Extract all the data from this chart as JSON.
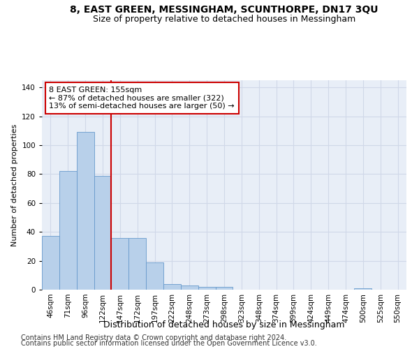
{
  "title": "8, EAST GREEN, MESSINGHAM, SCUNTHORPE, DN17 3QU",
  "subtitle": "Size of property relative to detached houses in Messingham",
  "xlabel": "Distribution of detached houses by size in Messingham",
  "ylabel": "Number of detached properties",
  "categories": [
    "46sqm",
    "71sqm",
    "96sqm",
    "122sqm",
    "147sqm",
    "172sqm",
    "197sqm",
    "222sqm",
    "248sqm",
    "273sqm",
    "298sqm",
    "323sqm",
    "348sqm",
    "374sqm",
    "399sqm",
    "424sqm",
    "449sqm",
    "474sqm",
    "500sqm",
    "525sqm",
    "550sqm"
  ],
  "bar_heights": [
    37,
    82,
    109,
    79,
    36,
    36,
    19,
    4,
    3,
    2,
    2,
    0,
    0,
    0,
    0,
    0,
    0,
    0,
    1,
    0,
    0
  ],
  "bar_color": "#b8d0ea",
  "bar_edge_color": "#6699cc",
  "red_line_index": 4,
  "red_line_color": "#cc0000",
  "annotation_text": "8 EAST GREEN: 155sqm\n← 87% of detached houses are smaller (322)\n13% of semi-detached houses are larger (50) →",
  "annotation_box_color": "#ffffff",
  "annotation_box_edge": "#cc0000",
  "ylim": [
    0,
    145
  ],
  "yticks": [
    0,
    20,
    40,
    60,
    80,
    100,
    120,
    140
  ],
  "footer_line1": "Contains HM Land Registry data © Crown copyright and database right 2024.",
  "footer_line2": "Contains public sector information licensed under the Open Government Licence v3.0.",
  "bg_color": "#e8eef7",
  "fig_bg_color": "#ffffff",
  "grid_color": "#d0d8e8",
  "title_fontsize": 10,
  "subtitle_fontsize": 9,
  "annotation_fontsize": 8,
  "tick_fontsize": 7.5,
  "ylabel_fontsize": 8,
  "xlabel_fontsize": 9,
  "footer_fontsize": 7
}
